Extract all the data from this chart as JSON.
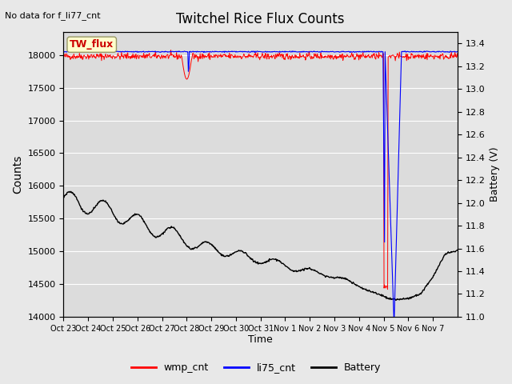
{
  "title": "Twitchel Rice Flux Counts",
  "top_left_text": "No data for f_li77_cnt",
  "ylabel_left": "Counts",
  "ylabel_right": "Battery (V)",
  "xlabel": "Time",
  "ylim_left": [
    14000,
    18350
  ],
  "ylim_right": [
    11.0,
    13.5
  ],
  "yticks_left": [
    14000,
    14500,
    15000,
    15500,
    16000,
    16500,
    17000,
    17500,
    18000
  ],
  "yticks_right": [
    11.0,
    11.2,
    11.4,
    11.6,
    11.8,
    12.0,
    12.2,
    12.4,
    12.6,
    12.8,
    13.0,
    13.2,
    13.4
  ],
  "xtick_labels": [
    "Oct 23",
    "Oct 24",
    "Oct 25",
    "Oct 26",
    "Oct 27",
    "Oct 28",
    "Oct 29",
    "Oct 30",
    "Oct 31",
    "Nov 1",
    "Nov 2",
    "Nov 3",
    "Nov 4",
    "Nov 5",
    "Nov 6",
    "Nov 7"
  ],
  "n_days": 16,
  "wmp_color": "#ff0000",
  "li75_color": "#0000ff",
  "battery_color": "#000000",
  "bg_color": "#e8e8e8",
  "plot_bg_color": "#dcdcdc",
  "legend_labels": [
    "wmp_cnt",
    "li75_cnt",
    "Battery"
  ],
  "annotation_box_color": "#ffffcc",
  "annotation_box_edge_color": "#999966",
  "annotation_box_text": "TW_flux",
  "annotation_box_text_color": "#cc0000"
}
